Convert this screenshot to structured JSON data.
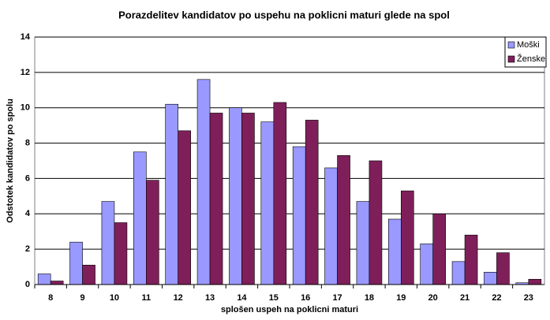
{
  "chart_data": {
    "type": "bar",
    "title": "Porazdelitev kandidatov po uspehu na poklicni maturi glede na spol",
    "x_label": "splošen uspeh na poklicni maturi",
    "y_label": "Odstotek kandidatov po spolu",
    "categories": [
      "8",
      "9",
      "10",
      "11",
      "12",
      "13",
      "14",
      "15",
      "16",
      "17",
      "18",
      "19",
      "20",
      "21",
      "22",
      "23"
    ],
    "series": [
      {
        "name": "Moški",
        "color": "#9999ff",
        "values": [
          0.6,
          2.4,
          4.7,
          7.5,
          10.2,
          11.6,
          10.0,
          9.2,
          7.8,
          6.6,
          4.7,
          3.7,
          2.3,
          1.3,
          0.7,
          0.1
        ]
      },
      {
        "name": "Ženske",
        "color": "#7f1f5a",
        "values": [
          0.2,
          1.1,
          3.5,
          5.9,
          8.7,
          9.7,
          9.7,
          10.3,
          9.3,
          7.3,
          7.0,
          5.3,
          4.0,
          2.8,
          1.8,
          0.3
        ]
      }
    ],
    "ylim": [
      0,
      14
    ],
    "yticks": [
      0,
      2,
      4,
      6,
      8,
      10,
      12,
      14
    ],
    "grid": true,
    "legend": "top-right"
  }
}
